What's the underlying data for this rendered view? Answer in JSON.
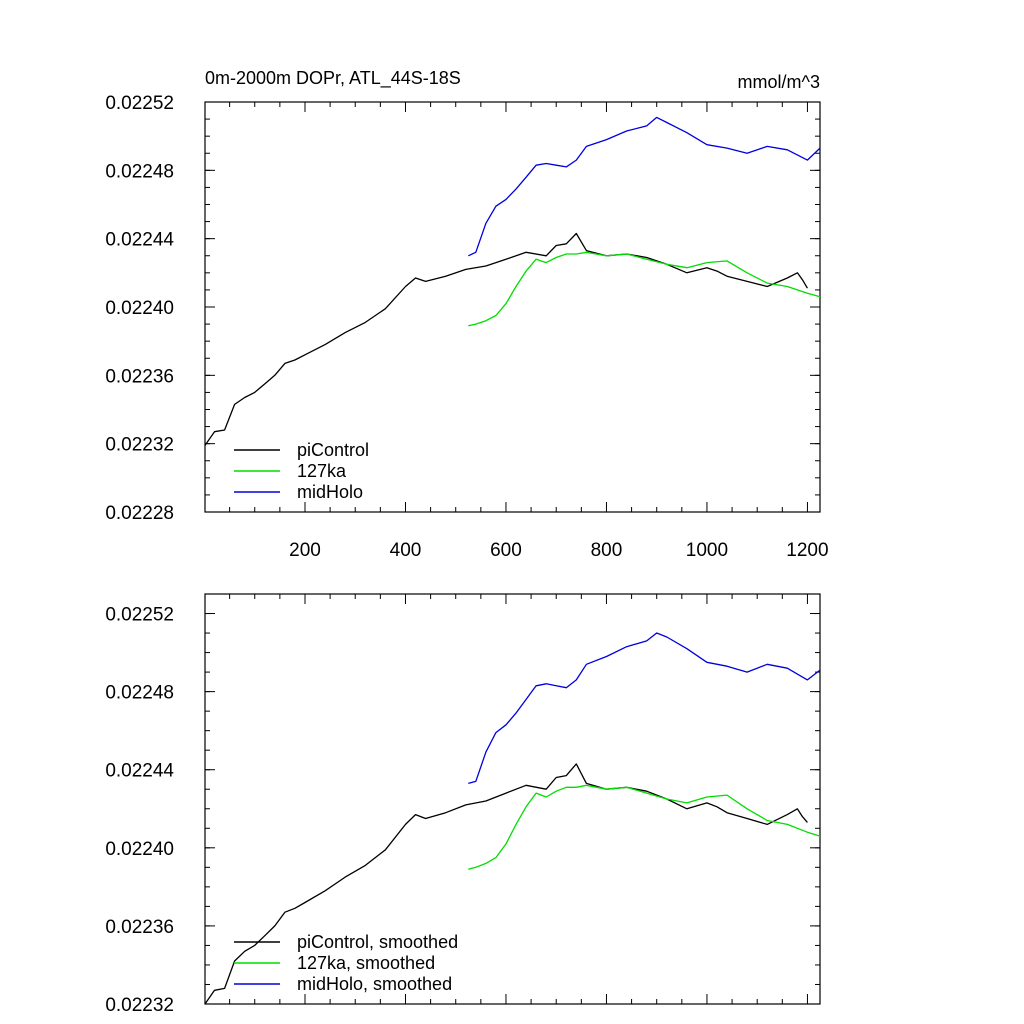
{
  "chart_data": [
    {
      "type": "line",
      "title": "0m-2000m DOPr, ATL_44S-18S",
      "units": "mmol/m^3",
      "xlabel": "",
      "ylabel": "",
      "xlim": [
        1,
        1225
      ],
      "ylim": [
        0.02228,
        0.02252
      ],
      "x_ticks": [
        200,
        400,
        600,
        800,
        1000,
        1200
      ],
      "x_tick_labels": [
        "200",
        "400",
        "600",
        "800",
        "1000",
        "1200"
      ],
      "y_ticks": [
        0.02228,
        0.02232,
        0.02236,
        0.0224,
        0.02244,
        0.02248,
        0.02252
      ],
      "y_tick_labels": [
        "0.02228",
        "0.02232",
        "0.02236",
        "0.02240",
        "0.02244",
        "0.02248",
        "0.02252"
      ],
      "legend_position": "bottom-left",
      "series": [
        {
          "name": "piControl",
          "color": "#000000",
          "x": [
            1,
            20,
            40,
            60,
            80,
            100,
            120,
            140,
            160,
            180,
            200,
            240,
            280,
            320,
            360,
            400,
            420,
            440,
            480,
            520,
            560,
            600,
            640,
            680,
            700,
            720,
            740,
            760,
            800,
            840,
            880,
            920,
            960,
            1000,
            1020,
            1040,
            1080,
            1120,
            1160,
            1180,
            1190,
            1200
          ],
          "y": [
            0.022319,
            0.022327,
            0.022328,
            0.022343,
            0.022347,
            0.02235,
            0.022355,
            0.02236,
            0.022367,
            0.022369,
            0.022372,
            0.022378,
            0.022385,
            0.022391,
            0.022399,
            0.022412,
            0.022417,
            0.022415,
            0.022418,
            0.022422,
            0.022424,
            0.022428,
            0.022432,
            0.02243,
            0.022436,
            0.022437,
            0.022443,
            0.022433,
            0.02243,
            0.022431,
            0.022429,
            0.022425,
            0.02242,
            0.022423,
            0.022421,
            0.022418,
            0.022415,
            0.022412,
            0.022417,
            0.02242,
            0.022416,
            0.022411
          ]
        },
        {
          "name": "127ka",
          "color": "#00dd00",
          "x": [
            525,
            540,
            560,
            580,
            600,
            620,
            640,
            660,
            680,
            700,
            720,
            740,
            760,
            800,
            840,
            880,
            920,
            960,
            1000,
            1040,
            1080,
            1120,
            1160,
            1200,
            1225
          ],
          "y": [
            0.022389,
            0.02239,
            0.022392,
            0.022395,
            0.022402,
            0.022412,
            0.022421,
            0.022428,
            0.022426,
            0.022429,
            0.022431,
            0.022431,
            0.022432,
            0.02243,
            0.022431,
            0.022428,
            0.022425,
            0.022423,
            0.022426,
            0.022427,
            0.02242,
            0.022414,
            0.022412,
            0.022408,
            0.022406
          ]
        },
        {
          "name": "midHolo",
          "color": "#0000dd",
          "x": [
            525,
            540,
            560,
            580,
            600,
            620,
            640,
            660,
            680,
            700,
            720,
            740,
            760,
            800,
            840,
            880,
            900,
            920,
            960,
            1000,
            1040,
            1080,
            1120,
            1160,
            1200,
            1225
          ],
          "y": [
            0.02243,
            0.022432,
            0.022449,
            0.022459,
            0.022463,
            0.022469,
            0.022476,
            0.022483,
            0.022484,
            0.022483,
            0.022482,
            0.022486,
            0.022494,
            0.022498,
            0.022503,
            0.022506,
            0.022511,
            0.022508,
            0.022502,
            0.022495,
            0.022493,
            0.02249,
            0.022494,
            0.022492,
            0.022486,
            0.022493
          ]
        }
      ]
    },
    {
      "type": "line",
      "title": "",
      "xlabel": "",
      "ylabel": "",
      "xlim": [
        1,
        1225
      ],
      "ylim": [
        0.02232,
        0.02253
      ],
      "x_ticks": [
        200,
        400,
        600,
        800,
        1000,
        1200
      ],
      "y_ticks": [
        0.02232,
        0.02236,
        0.0224,
        0.02244,
        0.02248,
        0.02252
      ],
      "y_tick_labels": [
        "0.02232",
        "0.02236",
        "0.02240",
        "0.02244",
        "0.02248",
        "0.02252"
      ],
      "legend_position": "bottom-left",
      "series": [
        {
          "name": "piControl, smoothed",
          "color": "#000000",
          "x": [
            1,
            20,
            40,
            60,
            80,
            100,
            120,
            140,
            160,
            180,
            200,
            240,
            280,
            320,
            360,
            400,
            420,
            440,
            480,
            520,
            560,
            600,
            640,
            680,
            700,
            720,
            740,
            760,
            800,
            840,
            880,
            920,
            960,
            1000,
            1020,
            1040,
            1080,
            1120,
            1160,
            1180,
            1190,
            1200
          ],
          "y": [
            0.02232,
            0.022327,
            0.022328,
            0.022342,
            0.022347,
            0.02235,
            0.022355,
            0.02236,
            0.022367,
            0.022369,
            0.022372,
            0.022378,
            0.022385,
            0.022391,
            0.022399,
            0.022412,
            0.022417,
            0.022415,
            0.022418,
            0.022422,
            0.022424,
            0.022428,
            0.022432,
            0.02243,
            0.022436,
            0.022437,
            0.022443,
            0.022433,
            0.02243,
            0.022431,
            0.022429,
            0.022425,
            0.02242,
            0.022423,
            0.022421,
            0.022418,
            0.022415,
            0.022412,
            0.022417,
            0.02242,
            0.022416,
            0.022413
          ]
        },
        {
          "name": "127ka, smoothed",
          "color": "#00dd00",
          "x": [
            525,
            540,
            560,
            580,
            600,
            620,
            640,
            660,
            680,
            700,
            720,
            740,
            760,
            800,
            840,
            880,
            920,
            960,
            1000,
            1040,
            1080,
            1120,
            1160,
            1200,
            1225
          ],
          "y": [
            0.022389,
            0.02239,
            0.022392,
            0.022395,
            0.022402,
            0.022412,
            0.022421,
            0.022428,
            0.022426,
            0.022429,
            0.022431,
            0.022431,
            0.022432,
            0.02243,
            0.022431,
            0.022428,
            0.022425,
            0.022423,
            0.022426,
            0.022427,
            0.02242,
            0.022414,
            0.022412,
            0.022408,
            0.022406
          ]
        },
        {
          "name": "midHolo, smoothed",
          "color": "#0000dd",
          "x": [
            525,
            540,
            560,
            580,
            600,
            620,
            640,
            660,
            680,
            700,
            720,
            740,
            760,
            800,
            840,
            880,
            900,
            920,
            960,
            1000,
            1040,
            1080,
            1120,
            1160,
            1200,
            1225
          ],
          "y": [
            0.022433,
            0.022434,
            0.022449,
            0.022459,
            0.022463,
            0.022469,
            0.022476,
            0.022483,
            0.022484,
            0.022483,
            0.022482,
            0.022486,
            0.022494,
            0.022498,
            0.022503,
            0.022506,
            0.02251,
            0.022508,
            0.022502,
            0.022495,
            0.022493,
            0.02249,
            0.022494,
            0.022492,
            0.022486,
            0.022491
          ]
        }
      ]
    }
  ]
}
